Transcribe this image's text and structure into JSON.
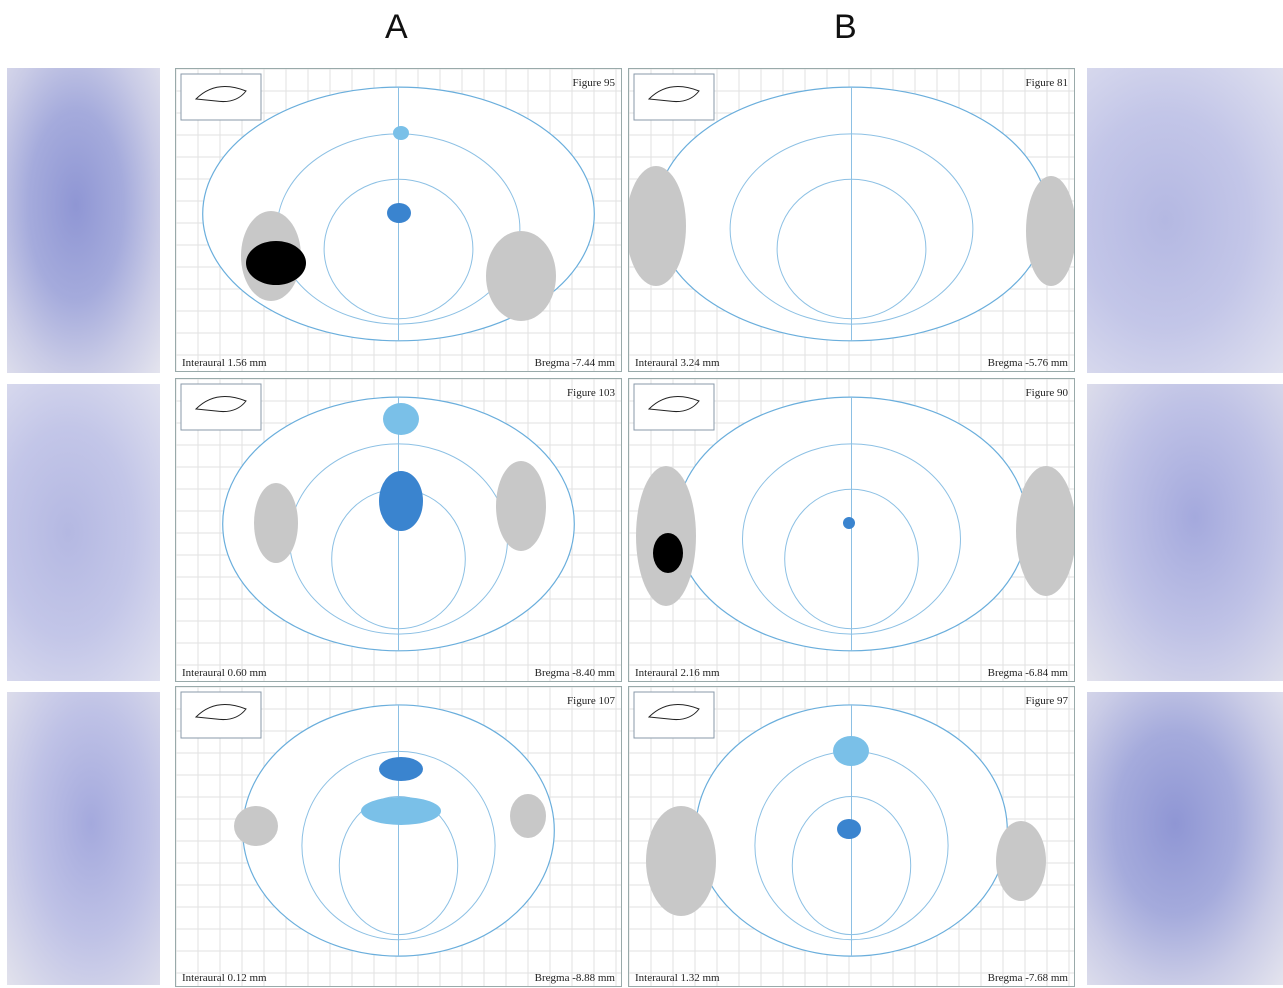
{
  "columns": [
    {
      "heading": "A",
      "panels": [
        {
          "figure": "Figure 95",
          "interaural": "Interaural 1.56 mm",
          "bregma": "Bregma -7.44 mm"
        },
        {
          "figure": "Figure 103",
          "interaural": "Interaural 0.60 mm",
          "bregma": "Bregma -8.40 mm"
        },
        {
          "figure": "Figure 107",
          "interaural": "Interaural 0.12 mm",
          "bregma": "Bregma -8.88 mm"
        }
      ]
    },
    {
      "heading": "B",
      "panels": [
        {
          "figure": "Figure 81",
          "interaural": "Interaural 3.24 mm",
          "bregma": "Bregma -5.76 mm"
        },
        {
          "figure": "Figure 90",
          "interaural": "Interaural 2.16 mm",
          "bregma": "Bregma -6.84 mm"
        },
        {
          "figure": "Figure 97",
          "interaural": "Interaural 1.32 mm",
          "bregma": "Bregma -7.68 mm"
        }
      ]
    }
  ]
}
